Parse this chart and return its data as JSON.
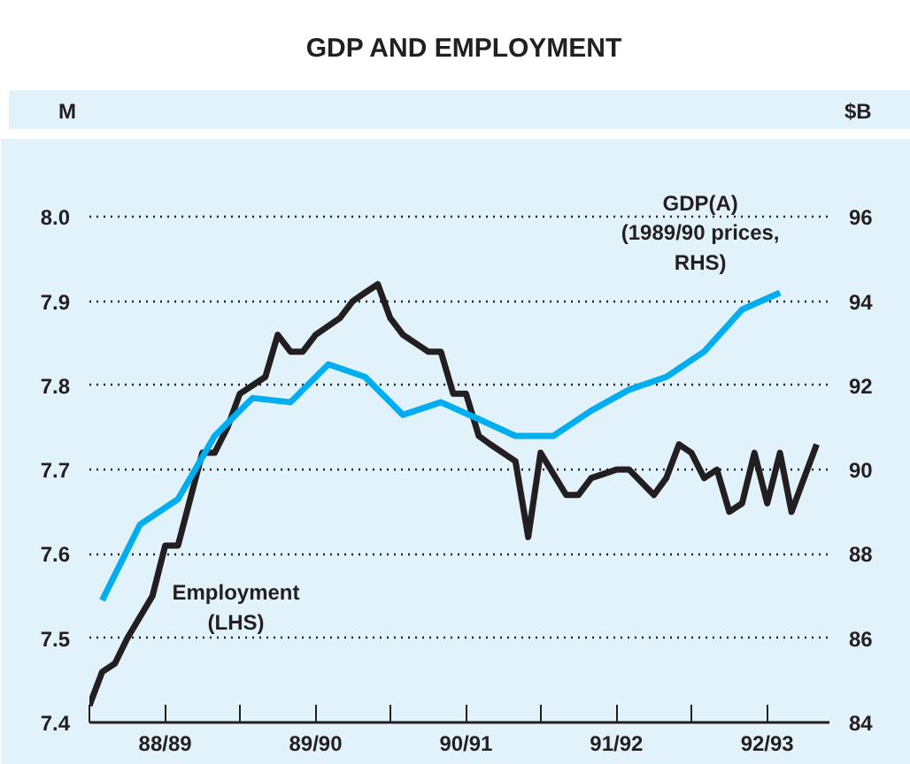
{
  "chart_data": {
    "type": "line",
    "title": "GDP AND EMPLOYMENT",
    "ylabel": "M",
    "y2label": "$B",
    "xlim": [
      "1988-07-01",
      "1993-06-01"
    ],
    "xticks": [
      {
        "value": "1988-07-01",
        "label": null
      },
      {
        "value": "1989-01-01",
        "label": "88/89"
      },
      {
        "value": "1989-07-01",
        "label": null
      },
      {
        "value": "1990-01-01",
        "label": "89/90"
      },
      {
        "value": "1990-07-01",
        "label": null
      },
      {
        "value": "1991-01-01",
        "label": "90/91"
      },
      {
        "value": "1991-07-01",
        "label": null
      },
      {
        "value": "1992-01-01",
        "label": "91/92"
      },
      {
        "value": "1992-07-01",
        "label": null
      },
      {
        "value": "1993-01-01",
        "label": "92/93"
      }
    ],
    "ylim": [
      7.4,
      8.08
    ],
    "yticks": [
      {
        "value": 7.4,
        "label": "7.4"
      },
      {
        "value": 7.5,
        "label": "7.5"
      },
      {
        "value": 7.6,
        "label": "7.6"
      },
      {
        "value": 7.7,
        "label": "7.7"
      },
      {
        "value": 7.8,
        "label": "7.8"
      },
      {
        "value": 7.9,
        "label": "7.9"
      },
      {
        "value": 8.0,
        "label": "8.0"
      }
    ],
    "y2lim": [
      84,
      97.6
    ],
    "y2ticks": [
      84,
      86,
      88,
      90,
      92,
      94,
      96
    ],
    "grid": "y",
    "line_style": "solid",
    "series": [
      {
        "name": "Employment\n(LHS)",
        "color": "#231f20",
        "x": [
          "1988-07",
          "1988-08",
          "1988-09",
          "1988-10",
          "1988-12",
          "1989-01",
          "1989-02",
          "1989-04",
          "1989-05",
          "1989-06",
          "1989-07",
          "1989-09",
          "1989-10",
          "1989-11",
          "1989-12",
          "1990-01",
          "1990-03",
          "1990-04",
          "1990-05",
          "1990-06",
          "1990-07",
          "1990-08",
          "1990-10",
          "1990-11",
          "1990-12",
          "1991-01",
          "1991-02",
          "1991-03",
          "1991-05",
          "1991-06",
          "1991-07",
          "1991-09",
          "1991-10",
          "1991-11",
          "1992-01",
          "1992-02",
          "1992-04",
          "1992-05",
          "1992-06",
          "1992-07",
          "1992-08",
          "1992-09",
          "1992-10",
          "1992-11",
          "1992-12",
          "1993-01",
          "1993-02",
          "1993-03",
          "1993-05"
        ],
        "values": [
          7.42,
          7.46,
          7.47,
          7.5,
          7.55,
          7.61,
          7.61,
          7.72,
          7.72,
          7.75,
          7.79,
          7.81,
          7.86,
          7.84,
          7.84,
          7.86,
          7.88,
          7.9,
          7.91,
          7.92,
          7.88,
          7.86,
          7.84,
          7.84,
          7.79,
          7.79,
          7.74,
          7.73,
          7.71,
          7.62,
          7.72,
          7.67,
          7.67,
          7.69,
          7.7,
          7.7,
          7.67,
          7.69,
          7.73,
          7.72,
          7.69,
          7.7,
          7.65,
          7.66,
          7.72,
          7.66,
          7.72,
          7.65,
          7.73
        ]
      },
      {
        "name": "GDP(A)\n(1989/90 prices,\nRHS)",
        "color": "#00aeef",
        "axis": "y2",
        "x": [
          "1988-08",
          "1988-11",
          "1989-02",
          "1989-05",
          "1989-08",
          "1989-11",
          "1990-02",
          "1990-05",
          "1990-08",
          "1990-11",
          "1991-02",
          "1991-05",
          "1991-08",
          "1991-11",
          "1992-02",
          "1992-05",
          "1992-08",
          "1992-11",
          "1993-02"
        ],
        "values": [
          86.9,
          88.7,
          89.3,
          90.8,
          91.7,
          91.6,
          92.5,
          92.2,
          91.3,
          91.6,
          91.2,
          90.8,
          90.8,
          91.4,
          91.9,
          92.2,
          92.8,
          93.8,
          94.2
        ]
      }
    ]
  }
}
